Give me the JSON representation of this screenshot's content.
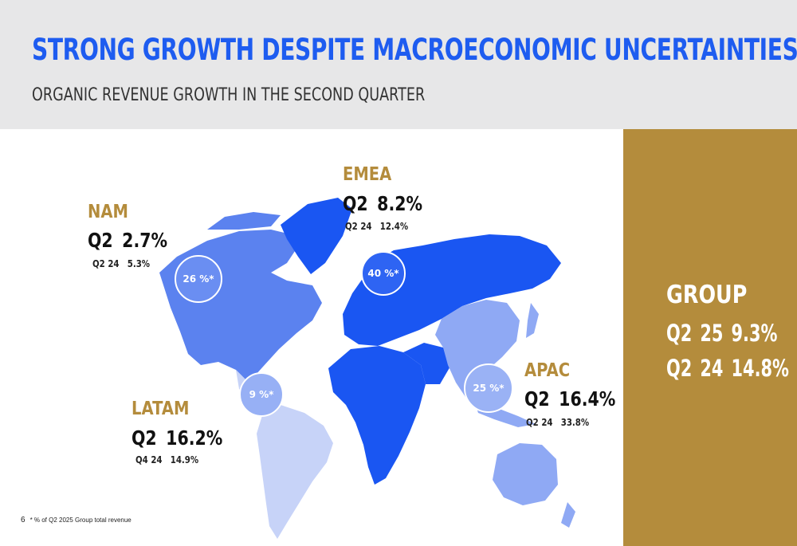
{
  "header": {
    "title": "STRONG GROWTH DESPITE MACROECONOMIC UNCERTAINTIES",
    "subtitle": "ORGANIC REVENUE GROWTH IN THE SECOND QUARTER"
  },
  "regions": {
    "nam": {
      "name": "NAM",
      "current_label": "Q2",
      "current_value": "2.7%",
      "prev_label": "Q2 24",
      "prev_value": "5.3%",
      "share": "26 %*"
    },
    "emea": {
      "name": "EMEA",
      "current_label": "Q2",
      "current_value": "8.2%",
      "prev_label": "Q2 24",
      "prev_value": "12.4%",
      "share": "40 %*"
    },
    "latam": {
      "name": "LATAM",
      "current_label": "Q2",
      "current_value": "16.2%",
      "prev_label": "Q4 24",
      "prev_value": "14.9%",
      "share": "9 %*"
    },
    "apac": {
      "name": "APAC",
      "current_label": "Q2",
      "current_value": "16.4%",
      "prev_label": "Q2 24",
      "prev_value": "33.8%",
      "share": "25 %*"
    }
  },
  "group": {
    "title": "GROUP",
    "rows": [
      {
        "quarter": "Q2",
        "year": "25",
        "value": "9.3%"
      },
      {
        "quarter": "Q2",
        "year": "24",
        "value": "14.8%"
      }
    ]
  },
  "footer": {
    "page_number": "6",
    "footnote": "* % of Q2 2025 Group total revenue"
  },
  "colors": {
    "title_blue": "#1e5cf0",
    "gold": "#b48c3c",
    "emea_fill": "#1a56f2",
    "nam_fill": "#5b82ef",
    "apac_fill": "#8fa9f4",
    "latam_fill": "#c7d3f8"
  }
}
